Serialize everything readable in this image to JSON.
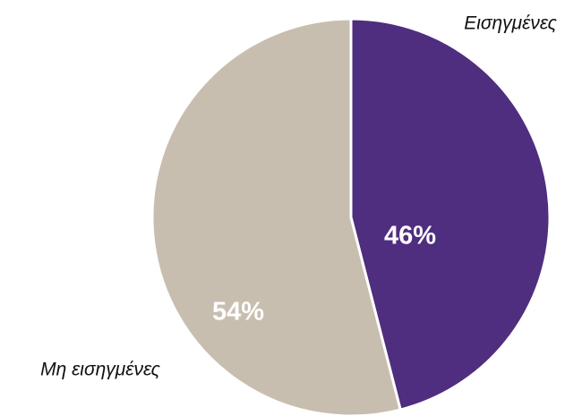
{
  "chart_data": {
    "type": "pie",
    "categories": [
      "Εισηγμένες",
      "Μη εισηγμένες"
    ],
    "values": [
      46,
      54
    ],
    "value_labels": [
      "46%",
      "54%"
    ],
    "colors": [
      "#4f2d7f",
      "#c8beb0"
    ]
  }
}
